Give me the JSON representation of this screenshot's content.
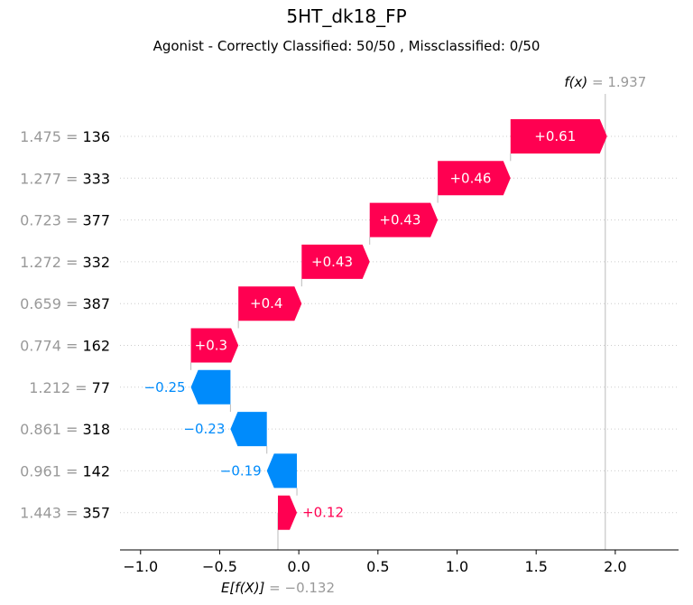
{
  "chart_data": {
    "type": "waterfall",
    "title": "5HT_dk18_FP",
    "subtitle": "Agonist - Correctly Classified: 50/50 , Missclassified: 0/50",
    "fx_label": "f(x)",
    "fx_value": "1.937",
    "base_label": "E[f(X)]",
    "base_value": "−0.132",
    "base": -0.132,
    "fx": 1.937,
    "features": [
      {
        "name": "136",
        "value": "1.475",
        "shap": 0.61,
        "label": "+0.61"
      },
      {
        "name": "333",
        "value": "1.277",
        "shap": 0.46,
        "label": "+0.46"
      },
      {
        "name": "377",
        "value": "0.723",
        "shap": 0.43,
        "label": "+0.43"
      },
      {
        "name": "332",
        "value": "1.272",
        "shap": 0.43,
        "label": "+0.43"
      },
      {
        "name": "387",
        "value": "0.659",
        "shap": 0.4,
        "label": "+0.4"
      },
      {
        "name": "162",
        "value": "0.774",
        "shap": 0.3,
        "label": "+0.3"
      },
      {
        "name": "77",
        "value": "1.212",
        "shap": -0.25,
        "label": "−0.25"
      },
      {
        "name": "318",
        "value": "0.861",
        "shap": -0.23,
        "label": "−0.23"
      },
      {
        "name": "142",
        "value": "0.961",
        "shap": -0.19,
        "label": "−0.19"
      },
      {
        "name": "357",
        "value": "1.443",
        "shap": 0.12,
        "label": "+0.12"
      }
    ],
    "xticks": [
      -1.0,
      -0.5,
      0.0,
      0.5,
      1.0,
      1.5,
      2.0
    ],
    "xtick_labels": [
      "−1.0",
      "−0.5",
      "0.0",
      "0.5",
      "1.0",
      "1.5",
      "2.0"
    ],
    "xlim": [
      -1.13,
      2.4
    ],
    "colors": {
      "positive": "#ff0051",
      "negative": "#008bfb",
      "muted": "#999999"
    }
  }
}
